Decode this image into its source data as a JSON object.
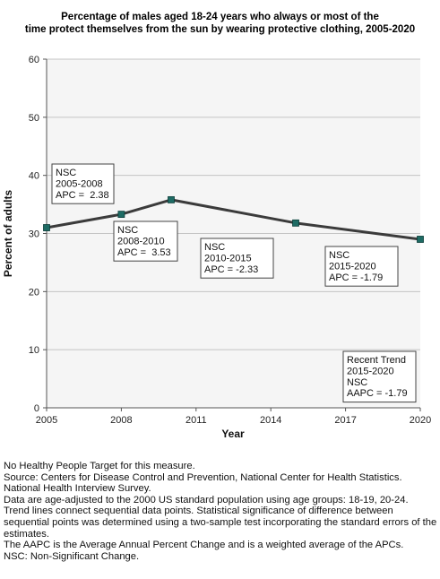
{
  "chart_data": {
    "type": "line",
    "title_lines": [
      "Percentage of males aged 18-24 years who always or most of the",
      "time protect themselves from the sun by wearing protective clothing, 2005-2020"
    ],
    "xlabel": "Year",
    "ylabel": "Percent of adults",
    "xlim": [
      2005,
      2020
    ],
    "ylim": [
      0,
      60
    ],
    "x_ticks": [
      "2005",
      "2008",
      "2011",
      "2014",
      "2017",
      "2020"
    ],
    "y_ticks": [
      "0",
      "10",
      "20",
      "30",
      "40",
      "50",
      "60"
    ],
    "grid": true,
    "series": [
      {
        "color": "#3b3b3b",
        "marker_color": "#1e6b64",
        "points": [
          {
            "x": 2005,
            "y": 31.0
          },
          {
            "x": 2008,
            "y": 33.3
          },
          {
            "x": 2010,
            "y": 35.8
          },
          {
            "x": 2015,
            "y": 31.8
          },
          {
            "x": 2020,
            "y": 29.0
          }
        ]
      }
    ],
    "annotations": [
      {
        "lines": [
          "NSC",
          "2005-2008",
          "APC =  2.38"
        ]
      },
      {
        "lines": [
          "NSC",
          "2008-2010",
          "APC =  3.53"
        ]
      },
      {
        "lines": [
          "NSC",
          "2010-2015",
          "APC = -2.33"
        ]
      },
      {
        "lines": [
          "NSC",
          "2015-2020",
          "APC = -1.79"
        ]
      },
      {
        "lines": [
          "Recent Trend",
          "2015-2020",
          "NSC",
          "AAPC = -1.79"
        ]
      }
    ]
  },
  "notes": [
    "No Healthy People Target for this measure.",
    "Source: Centers for Disease Control and Prevention, National Center for Health Statistics. National Health Interview Survey.",
    "Data are age-adjusted to the 2000 US standard population using age groups: 18-19, 20-24.",
    "Trend lines connect sequential data points. Statistical significance of difference between sequential points was determined using a two-sample test incorporating the standard errors of the estimates.",
    "The AAPC is the Average Annual Percent Change and is a weighted average of the APCs.",
    "NSC: Non-Significant Change."
  ]
}
